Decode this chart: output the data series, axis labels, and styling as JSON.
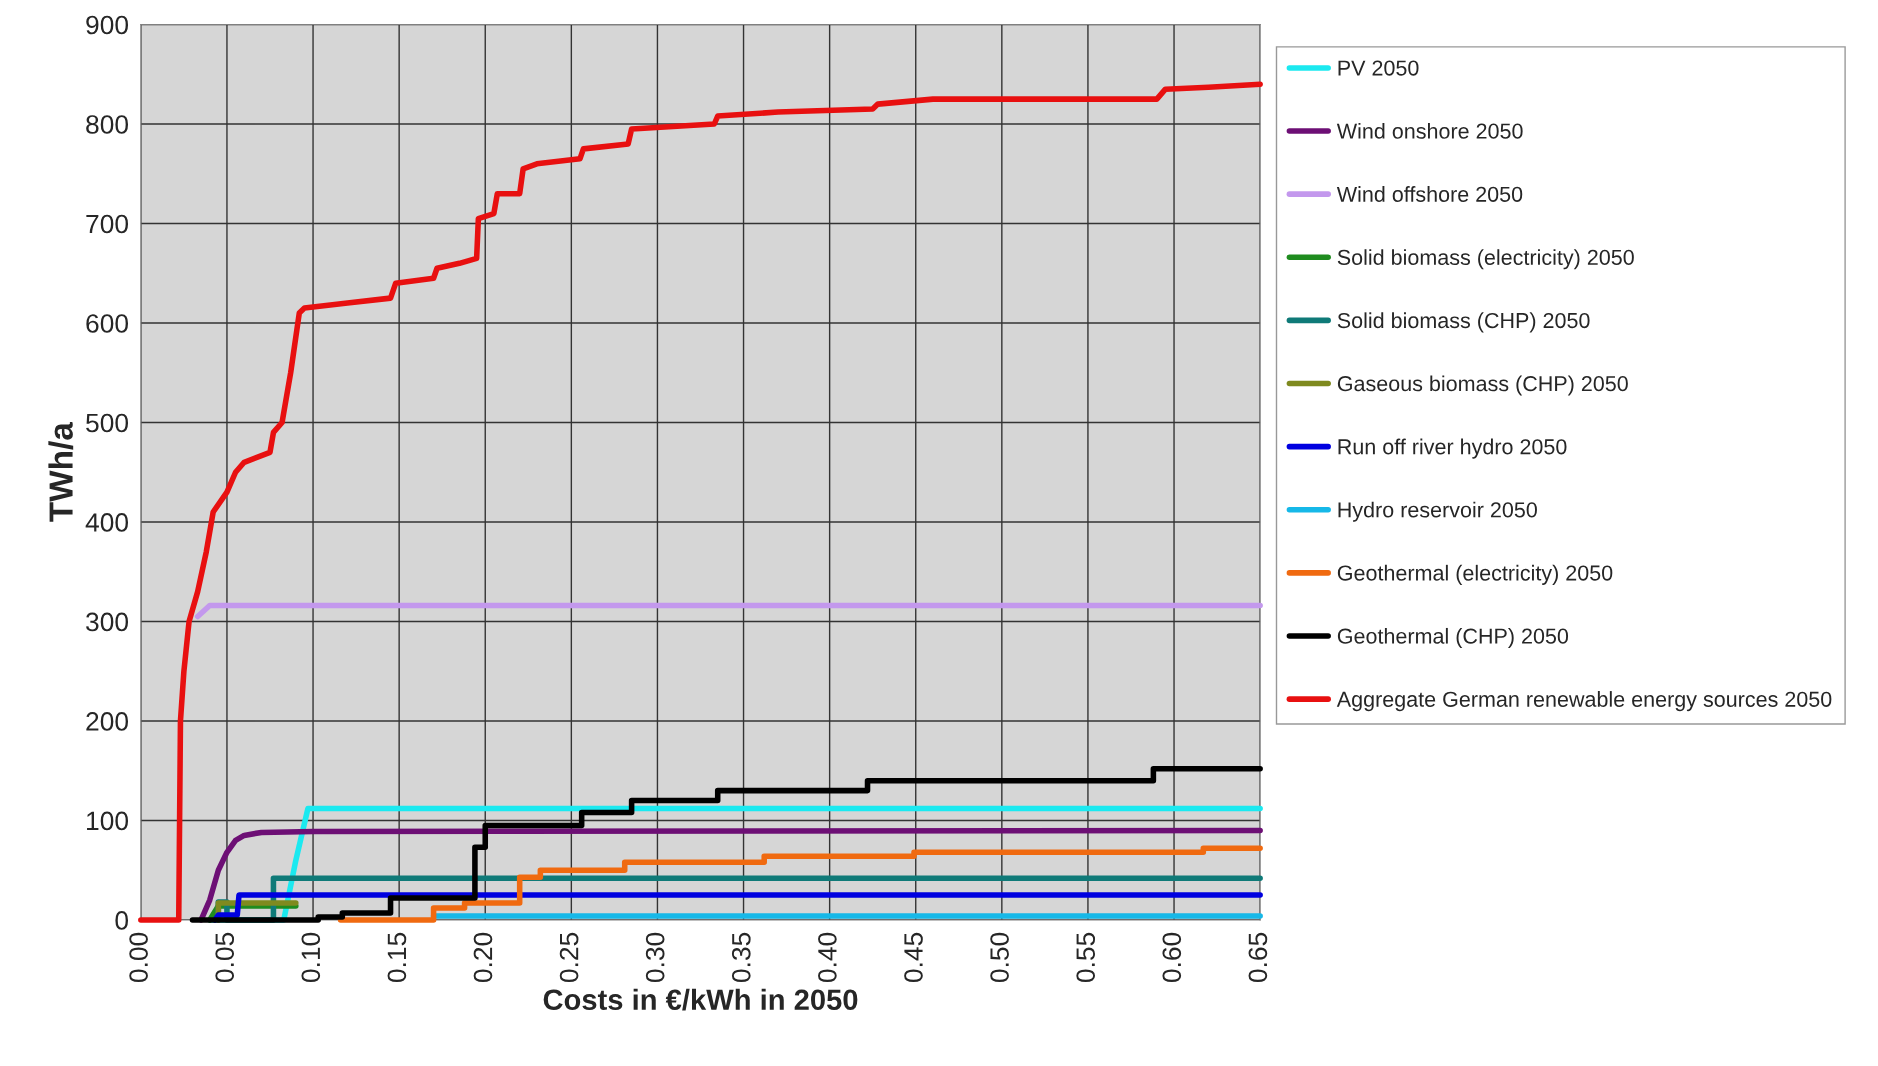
{
  "chart_data": {
    "type": "line",
    "xlabel": "Costs in €/kWh in 2050",
    "ylabel": "TWh/a",
    "xlim": [
      0,
      0.65
    ],
    "ylim": [
      0,
      900
    ],
    "xticks": [
      {
        "value": 0,
        "label": "0.00"
      },
      {
        "value": 0.05,
        "label": "0.05"
      },
      {
        "value": 0.1,
        "label": "0.10"
      },
      {
        "value": 0.15,
        "label": "0.15"
      },
      {
        "value": 0.2,
        "label": "0.20"
      },
      {
        "value": 0.25,
        "label": "0.25"
      },
      {
        "value": 0.3,
        "label": "0.30"
      },
      {
        "value": 0.35,
        "label": "0.35"
      },
      {
        "value": 0.4,
        "label": "0.40"
      },
      {
        "value": 0.45,
        "label": "0.45"
      },
      {
        "value": 0.5,
        "label": "0.50"
      },
      {
        "value": 0.55,
        "label": "0.55"
      },
      {
        "value": 0.6,
        "label": "0.60"
      },
      {
        "value": 0.65,
        "label": "0.65"
      }
    ],
    "yticks": [
      0,
      100,
      200,
      300,
      400,
      500,
      600,
      700,
      800,
      900
    ],
    "grid": true,
    "legend": "right",
    "marker": "none",
    "line_style": "solid",
    "series": [
      {
        "name": "PV 2050",
        "color": "#1be9f0",
        "x": [
          0.04,
          0.083,
          0.09,
          0.097,
          0.65
        ],
        "values": [
          0,
          0,
          60,
          112,
          112
        ]
      },
      {
        "name": "Wind onshore 2050",
        "color": "#6d0f75",
        "x": [
          0.035,
          0.04,
          0.045,
          0.05,
          0.055,
          0.06,
          0.07,
          0.1,
          0.65
        ],
        "values": [
          0,
          20,
          50,
          68,
          80,
          85,
          88,
          89,
          90
        ]
      },
      {
        "name": "Wind offshore 2050",
        "color": "#c398ed",
        "x": [
          0.033,
          0.04,
          0.65
        ],
        "values": [
          305,
          316,
          316
        ]
      },
      {
        "name": "Solid biomass (electricity) 2050",
        "color": "#1f8c1f",
        "x": [
          0.04,
          0.045,
          0.09
        ],
        "values": [
          0,
          14,
          14
        ]
      },
      {
        "name": "Solid biomass (CHP) 2050",
        "color": "#0f7a78",
        "x": [
          0.045,
          0.045,
          0.05,
          0.05,
          0.077,
          0.077,
          0.65
        ],
        "values": [
          0,
          18,
          18,
          0,
          0,
          42,
          42
        ]
      },
      {
        "name": "Gaseous biomass (CHP) 2050",
        "color": "#7f8a1f",
        "x": [
          0.045,
          0.045,
          0.09
        ],
        "values": [
          0,
          17,
          17
        ]
      },
      {
        "name": "Run off river hydro 2050",
        "color": "#0000e0",
        "x": [
          0.043,
          0.045,
          0.056,
          0.057,
          0.65
        ],
        "values": [
          0,
          5,
          5,
          25,
          25
        ]
      },
      {
        "name": "Hydro reservoir 2050",
        "color": "#16b8e8",
        "x": [
          0.17,
          0.65
        ],
        "values": [
          4,
          4
        ]
      },
      {
        "name": "Geothermal (electricity) 2050",
        "color": "#f06a10",
        "x": [
          0.116,
          0.17,
          0.17,
          0.188,
          0.188,
          0.22,
          0.22,
          0.232,
          0.232,
          0.281,
          0.281,
          0.362,
          0.362,
          0.449,
          0.449,
          0.617,
          0.617,
          0.65
        ],
        "values": [
          0,
          0,
          12,
          12,
          17,
          17,
          43,
          43,
          50,
          50,
          58,
          58,
          64,
          64,
          68,
          68,
          72,
          72
        ]
      },
      {
        "name": "Geothermal (CHP) 2050",
        "color": "#000000",
        "x": [
          0.03,
          0.103,
          0.103,
          0.117,
          0.117,
          0.145,
          0.145,
          0.194,
          0.194,
          0.2,
          0.2,
          0.256,
          0.256,
          0.285,
          0.285,
          0.335,
          0.335,
          0.422,
          0.422,
          0.588,
          0.588,
          0.65
        ],
        "values": [
          0,
          0,
          3,
          3,
          7,
          7,
          22,
          22,
          73,
          73,
          95,
          95,
          108,
          108,
          120,
          120,
          130,
          130,
          140,
          140,
          152,
          152
        ]
      },
      {
        "name": "Aggregate German renewable energy sources 2050",
        "color": "#e81010",
        "x": [
          0,
          0.022,
          0.023,
          0.025,
          0.028,
          0.033,
          0.038,
          0.042,
          0.05,
          0.055,
          0.06,
          0.075,
          0.077,
          0.082,
          0.087,
          0.092,
          0.095,
          0.12,
          0.145,
          0.148,
          0.17,
          0.172,
          0.185,
          0.195,
          0.196,
          0.205,
          0.207,
          0.22,
          0.222,
          0.23,
          0.255,
          0.257,
          0.283,
          0.285,
          0.333,
          0.335,
          0.37,
          0.425,
          0.428,
          0.46,
          0.59,
          0.595,
          0.62,
          0.65
        ],
        "values": [
          0,
          0,
          200,
          250,
          300,
          330,
          370,
          410,
          430,
          450,
          460,
          470,
          490,
          500,
          550,
          610,
          615,
          620,
          625,
          640,
          645,
          655,
          660,
          665,
          705,
          710,
          730,
          730,
          755,
          760,
          765,
          775,
          780,
          795,
          800,
          808,
          812,
          815,
          820,
          825,
          825,
          835,
          837,
          840
        ]
      }
    ]
  }
}
